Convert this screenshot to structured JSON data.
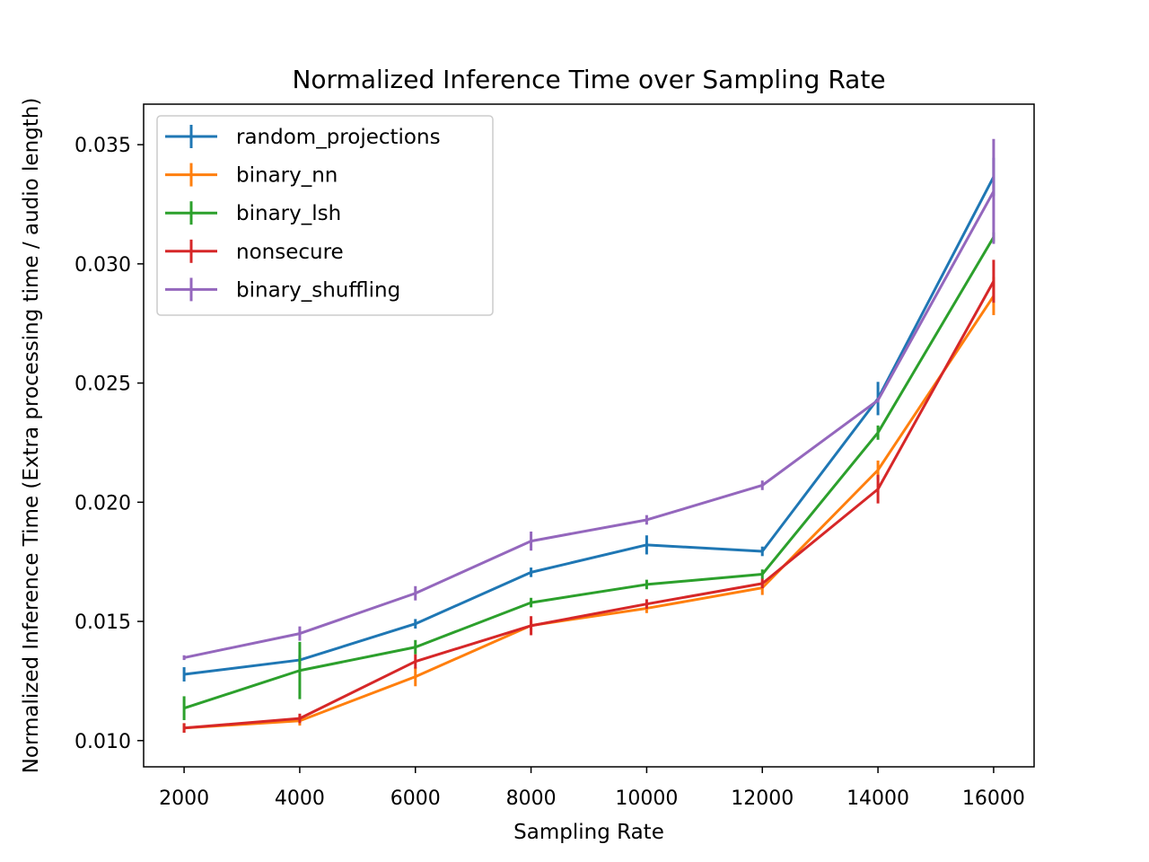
{
  "chart_data": {
    "type": "line",
    "title": "Normalized Inference Time over Sampling Rate",
    "xlabel": "Sampling Rate",
    "ylabel": "Normalized Inference Time (Extra processing time / audio length)",
    "x": [
      2000,
      4000,
      6000,
      8000,
      10000,
      12000,
      14000,
      16000
    ],
    "xticks": [
      "2000",
      "4000",
      "6000",
      "8000",
      "10000",
      "12000",
      "14000",
      "16000"
    ],
    "yticks": [
      "0.010",
      "0.015",
      "0.020",
      "0.025",
      "0.030",
      "0.035"
    ],
    "ylim": [
      0.0089,
      0.0367
    ],
    "xlim": [
      1300,
      16700
    ],
    "grid": false,
    "legend_position": "upper-left",
    "series": [
      {
        "name": "random_projections",
        "color": "#1f77b4",
        "values": [
          0.01278,
          0.01338,
          0.0149,
          0.01706,
          0.01821,
          0.01794,
          0.02435,
          0.03365
        ],
        "errors": [
          0.0003,
          0.0002,
          0.0002,
          0.0002,
          0.0004,
          0.0002,
          0.0007,
          0.0008
        ]
      },
      {
        "name": "binary_nn",
        "color": "#ff7f0e",
        "values": [
          0.01053,
          0.01083,
          0.01268,
          0.01483,
          0.01555,
          0.01641,
          0.02135,
          0.02865
        ],
        "errors": [
          0.0002,
          0.0002,
          0.0004,
          0.0002,
          0.0002,
          0.0003,
          0.0004,
          0.0008
        ]
      },
      {
        "name": "binary_lsh",
        "color": "#2ca02c",
        "values": [
          0.01136,
          0.01294,
          0.01392,
          0.01579,
          0.01655,
          0.01698,
          0.02292,
          0.03112
        ],
        "errors": [
          0.0005,
          0.0012,
          0.0003,
          0.0002,
          0.0002,
          0.0002,
          0.0003,
          0.0002
        ]
      },
      {
        "name": "nonsecure",
        "color": "#d62728",
        "values": [
          0.01053,
          0.01093,
          0.01332,
          0.01482,
          0.01573,
          0.01659,
          0.02055,
          0.02927
        ],
        "errors": [
          0.0002,
          0.0002,
          0.0003,
          0.0004,
          0.0002,
          0.0002,
          0.0006,
          0.0009
        ]
      },
      {
        "name": "binary_shuffling",
        "color": "#9467bd",
        "values": [
          0.01348,
          0.01449,
          0.01618,
          0.01837,
          0.01926,
          0.02071,
          0.02428,
          0.03304
        ],
        "errors": [
          0.0001,
          0.0003,
          0.0003,
          0.0004,
          0.0002,
          0.0002,
          0.0001,
          0.0022
        ]
      }
    ]
  }
}
